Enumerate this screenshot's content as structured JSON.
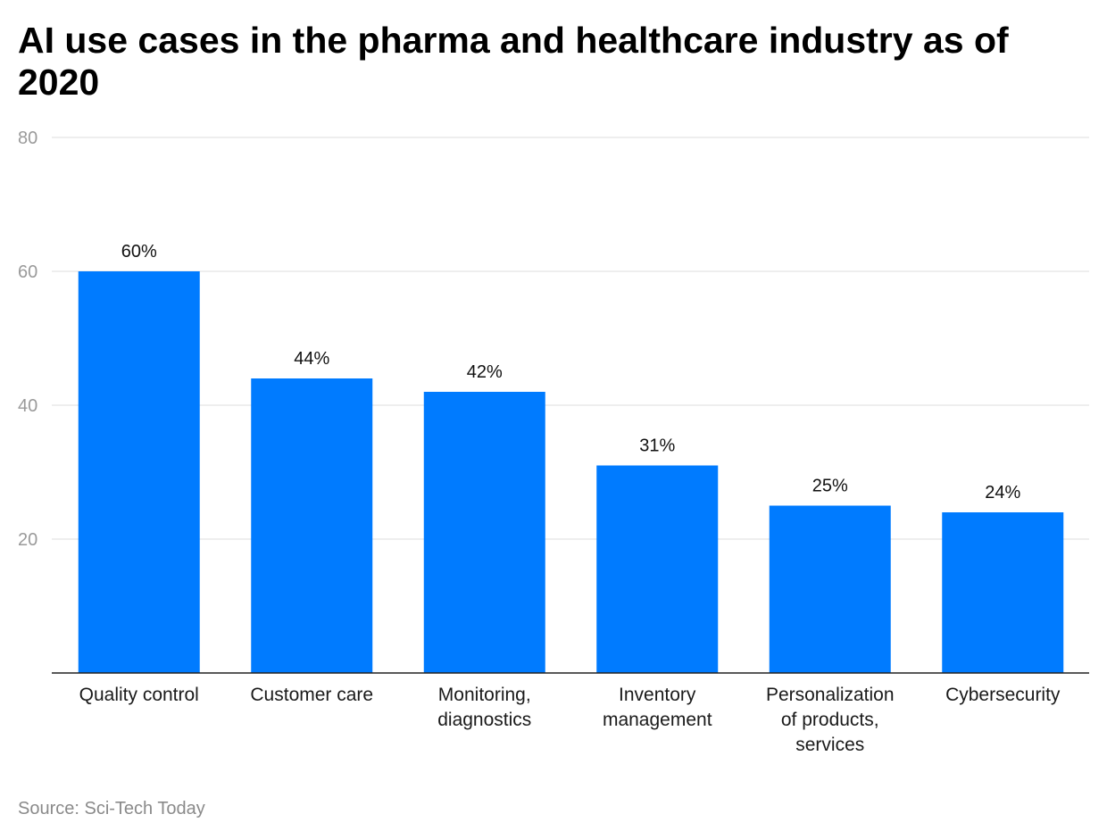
{
  "chart_data": {
    "type": "bar",
    "title": "AI use cases in the pharma and healthcare industry as of 2020",
    "categories": [
      "Quality control",
      "Customer care",
      "Monitoring, diagnostics",
      "Inventory management",
      "Personalization of products, services",
      "Cybersecurity"
    ],
    "category_lines": [
      [
        "Quality control"
      ],
      [
        "Customer care"
      ],
      [
        "Monitoring,",
        "diagnostics"
      ],
      [
        "Inventory",
        "management"
      ],
      [
        "Personalization",
        "of products,",
        "services"
      ],
      [
        "Cybersecurity"
      ]
    ],
    "values": [
      60,
      44,
      42,
      31,
      25,
      24
    ],
    "data_labels": [
      "60%",
      "44%",
      "42%",
      "31%",
      "25%",
      "24%"
    ],
    "ylim": [
      0,
      80
    ],
    "yticks": [
      20,
      40,
      60,
      80
    ],
    "xlabel": "",
    "ylabel": "",
    "grid": true,
    "bar_color": "#007bff",
    "source": "Source: Sci-Tech Today"
  }
}
